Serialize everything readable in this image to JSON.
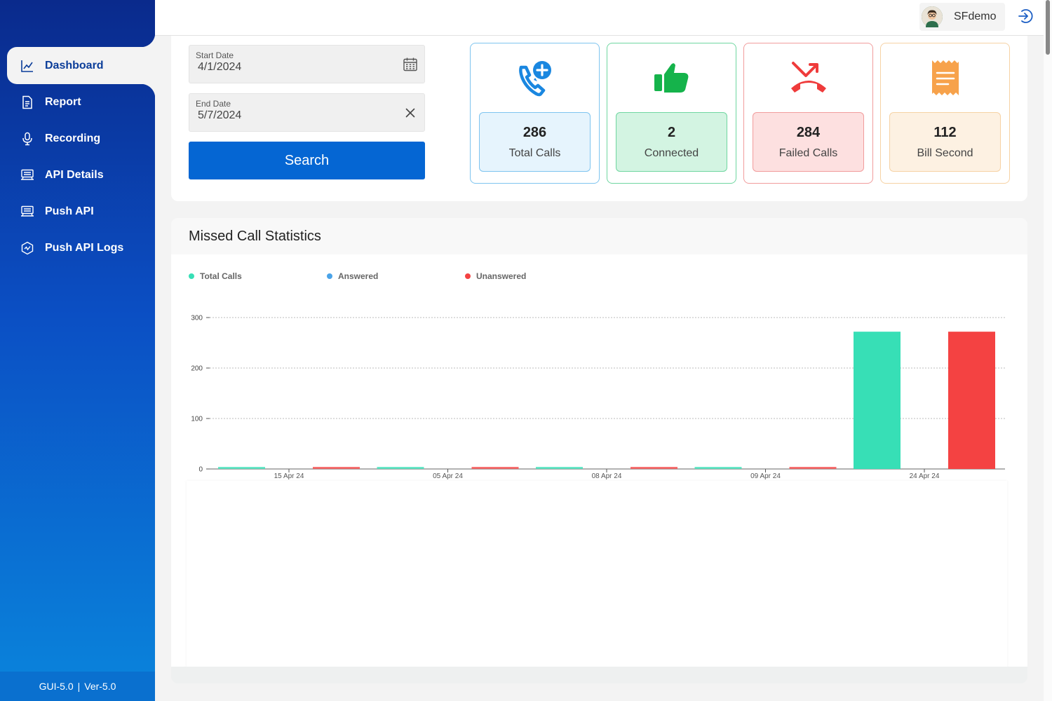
{
  "sidebar": {
    "items": [
      {
        "label": "Dashboard",
        "icon": "chart-line-icon",
        "active": true
      },
      {
        "label": "Report",
        "icon": "document-icon"
      },
      {
        "label": "Recording",
        "icon": "microphone-icon"
      },
      {
        "label": "API Details",
        "icon": "server-icon"
      },
      {
        "label": "Push API",
        "icon": "server-icon"
      },
      {
        "label": "Push API Logs",
        "icon": "hexagon-gear-icon"
      }
    ],
    "footer": {
      "gui": "GUI-5.0",
      "separator": "|",
      "ver": "Ver-5.0"
    }
  },
  "header": {
    "user_name": "SFdemo",
    "user_icon": "avatar-icon",
    "logout_icon": "logout-icon"
  },
  "filters": {
    "start_date": {
      "label": "Start Date",
      "value": "4/1/2024",
      "icon": "calendar-icon"
    },
    "end_date": {
      "label": "End Date",
      "value": "5/7/2024",
      "icon": "clear-icon"
    },
    "search_label": "Search"
  },
  "stats": [
    {
      "value": "286",
      "label": "Total Calls",
      "icon": "phone-add-icon",
      "color": "#1a87e0",
      "bg": "#e6f4fd",
      "border": "#7ec4ef"
    },
    {
      "value": "2",
      "label": "Connected",
      "icon": "thumbs-up-icon",
      "color": "#15b34b",
      "bg": "#d3f4e2",
      "border": "#6fd6a0"
    },
    {
      "value": "284",
      "label": "Failed Calls",
      "icon": "phone-failed-icon",
      "color": "#ef3b3b",
      "bg": "#fde0e0",
      "border": "#f19c9c"
    },
    {
      "value": "112",
      "label": "Bill Second",
      "icon": "receipt-icon",
      "color": "#f7a24b",
      "bg": "#fdf1e2",
      "border": "#f6d2a4"
    }
  ],
  "chart_section": {
    "title": "Missed Call Statistics"
  },
  "chart_data": {
    "type": "bar",
    "categories": [
      "15 Apr 24",
      "05 Apr 24",
      "08 Apr 24",
      "09 Apr 24",
      "24 Apr 24"
    ],
    "series": [
      {
        "name": "Total Calls",
        "color": "#37dfb6",
        "values": [
          1,
          1,
          1,
          1,
          272
        ]
      },
      {
        "name": "Answered",
        "color": "#4aa3e8",
        "values": [
          0,
          0,
          0,
          0,
          0
        ]
      },
      {
        "name": "Unanswered",
        "color": "#f44242",
        "values": [
          1,
          1,
          1,
          1,
          272
        ]
      }
    ],
    "yticks": [
      0,
      100,
      200,
      300
    ],
    "ylim": [
      0,
      300
    ],
    "grid": true,
    "legend": "top-left"
  }
}
